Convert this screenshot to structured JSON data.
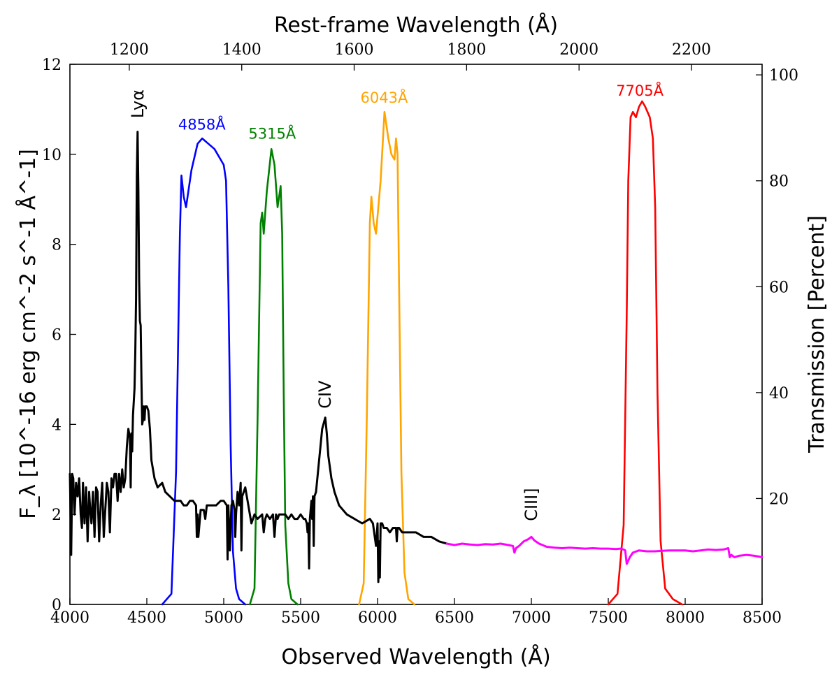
{
  "chart_data": {
    "type": "line",
    "xlabel": "Observed Wavelength (Å)",
    "ylabel": "F_λ [10^-16 erg cm^-2 s^-1 Å^-1]",
    "y2label": "Transmission [Percent]",
    "top_xlabel": "Rest-frame Wavelength (Å)",
    "xlim": [
      4000,
      8500
    ],
    "ylim": [
      0,
      12
    ],
    "y2lim": [
      0,
      102
    ],
    "x_ticks": [
      "4000",
      "4500",
      "5000",
      "5500",
      "6000",
      "6500",
      "7000",
      "7500",
      "8000",
      "8500"
    ],
    "y_ticks": [
      "0",
      "2",
      "4",
      "6",
      "8",
      "10",
      "12"
    ],
    "y2_ticks": [
      "20",
      "40",
      "60",
      "80",
      "100"
    ],
    "top_ticks": [
      "1200",
      "1400",
      "1600",
      "1800",
      "2000",
      "2200"
    ],
    "redshift": 2.655,
    "colors": {
      "spectrum": "#000000",
      "spectrum_ext": "#ff00ff",
      "f4858": "#0000ff",
      "f5315": "#008000",
      "f6043": "#ffa500",
      "f7705": "#ff0000"
    },
    "annotations": [
      {
        "text": "Lyα",
        "x": 4440,
        "y": 10.8
      },
      {
        "text": "CIV",
        "x": 5660,
        "y": 4.35
      },
      {
        "text": "CIII]",
        "x": 7000,
        "y": 1.85
      }
    ],
    "filters": [
      {
        "name": "f4858",
        "label": "4858Å",
        "label_x": 4858,
        "label_y": 10.55,
        "x": [
          4600,
          4660,
          4690,
          4715,
          4725,
          4740,
          4755,
          4790,
          4830,
          4860,
          4900,
          4940,
          4980,
          5000,
          5015,
          5030,
          5045,
          5060,
          5080,
          5100,
          5140
        ],
        "values": [
          0,
          2,
          25,
          70,
          81,
          77,
          75,
          82,
          87,
          88,
          87,
          86,
          84,
          83,
          80,
          60,
          30,
          10,
          3,
          1,
          0
        ]
      },
      {
        "name": "f5315",
        "label": "5315Å",
        "label_x": 5315,
        "label_y": 10.35,
        "x": [
          5170,
          5200,
          5220,
          5240,
          5250,
          5260,
          5280,
          5310,
          5330,
          5350,
          5370,
          5380,
          5390,
          5400,
          5420,
          5440,
          5480
        ],
        "values": [
          0,
          3,
          35,
          72,
          74,
          70,
          78,
          86,
          83,
          75,
          79,
          70,
          40,
          15,
          4,
          1,
          0
        ]
      },
      {
        "name": "f6043",
        "label": "6043Å",
        "label_x": 6043,
        "label_y": 11.15,
        "x": [
          5880,
          5910,
          5930,
          5950,
          5960,
          5975,
          5990,
          6020,
          6045,
          6070,
          6090,
          6110,
          6120,
          6130,
          6140,
          6155,
          6175,
          6200,
          6240
        ],
        "values": [
          0,
          4,
          35,
          72,
          77,
          72,
          70,
          80,
          93,
          88,
          85,
          84,
          88,
          85,
          60,
          25,
          6,
          1,
          0
        ]
      },
      {
        "name": "f7705",
        "label": "7705Å",
        "label_x": 7705,
        "label_y": 11.3,
        "x": [
          7500,
          7560,
          7600,
          7620,
          7630,
          7645,
          7660,
          7680,
          7700,
          7720,
          7740,
          7770,
          7790,
          7805,
          7820,
          7840,
          7870,
          7920,
          7980
        ],
        "values": [
          0,
          2,
          15,
          55,
          80,
          92,
          93,
          92,
          94,
          95,
          94,
          92,
          88,
          75,
          40,
          12,
          3,
          1,
          0
        ]
      }
    ],
    "series": [
      {
        "name": "spectrum",
        "color_key": "spectrum",
        "x": [
          4000,
          4008,
          4015,
          4022,
          4030,
          4040,
          4050,
          4060,
          4070,
          4078,
          4085,
          4095,
          4105,
          4115,
          4125,
          4132,
          4140,
          4150,
          4160,
          4170,
          4180,
          4190,
          4200,
          4210,
          4220,
          4230,
          4240,
          4250,
          4260,
          4270,
          4280,
          4290,
          4300,
          4310,
          4320,
          4330,
          4340,
          4350,
          4360,
          4370,
          4380,
          4390,
          4395,
          4400,
          4405,
          4410,
          4415,
          4420,
          4425,
          4430,
          4435,
          4440,
          4445,
          4450,
          4455,
          4460,
          4465,
          4470,
          4475,
          4480,
          4485,
          4490,
          4500,
          4510,
          4520,
          4530,
          4540,
          4550,
          4570,
          4600,
          4620,
          4650,
          4680,
          4720,
          4740,
          4760,
          4780,
          4800,
          4820,
          4825,
          4830,
          4835,
          4850,
          4870,
          4880,
          4890,
          4900,
          4920,
          4950,
          4980,
          5000,
          5020,
          5025,
          5030,
          5040,
          5050,
          5060,
          5070,
          5075,
          5080,
          5090,
          5100,
          5110,
          5115,
          5120,
          5130,
          5140,
          5150,
          5160,
          5170,
          5180,
          5200,
          5220,
          5250,
          5260,
          5270,
          5280,
          5300,
          5320,
          5330,
          5340,
          5350,
          5360,
          5380,
          5400,
          5420,
          5440,
          5460,
          5480,
          5500,
          5520,
          5530,
          5540,
          5545,
          5550,
          5555,
          5560,
          5570,
          5575,
          5580,
          5585,
          5590,
          5600,
          5620,
          5640,
          5660,
          5670,
          5680,
          5700,
          5720,
          5750,
          5800,
          5850,
          5900,
          5950,
          5970,
          5990,
          6000,
          6005,
          6010,
          6015,
          6020,
          6030,
          6040,
          6060,
          6080,
          6100,
          6120,
          6125,
          6130,
          6140,
          6160,
          6200,
          6250,
          6300,
          6350,
          6400,
          6450
        ],
        "values": [
          2.9,
          1.1,
          2.9,
          2.8,
          2.0,
          2.7,
          2.4,
          2.8,
          2.0,
          1.7,
          2.7,
          1.8,
          2.6,
          1.4,
          2.5,
          2.1,
          1.8,
          2.5,
          1.5,
          2.6,
          2.5,
          1.4,
          2.2,
          2.7,
          1.5,
          2.1,
          2.7,
          2.5,
          1.6,
          2.8,
          2.6,
          2.9,
          2.9,
          2.3,
          2.9,
          2.5,
          3.0,
          2.6,
          2.8,
          3.5,
          3.9,
          3.7,
          2.6,
          3.8,
          3.4,
          4.2,
          4.5,
          4.8,
          5.6,
          6.8,
          9.5,
          10.5,
          9.2,
          7.2,
          6.3,
          6.2,
          5.0,
          4.0,
          4.1,
          4.4,
          4.1,
          4.4,
          4.4,
          4.3,
          3.9,
          3.2,
          3.0,
          2.8,
          2.6,
          2.7,
          2.5,
          2.4,
          2.3,
          2.3,
          2.2,
          2.2,
          2.3,
          2.3,
          2.2,
          1.5,
          2.0,
          1.5,
          2.1,
          2.1,
          1.9,
          2.2,
          2.2,
          2.2,
          2.2,
          2.3,
          2.3,
          2.2,
          1.0,
          2.2,
          1.2,
          2.2,
          2.3,
          2.1,
          1.5,
          2.0,
          2.5,
          2.2,
          2.7,
          1.2,
          2.4,
          2.5,
          2.6,
          2.4,
          2.2,
          2.0,
          1.8,
          2.0,
          1.9,
          2.0,
          1.6,
          1.9,
          2.0,
          1.9,
          2.0,
          1.5,
          2.0,
          1.9,
          2.0,
          2.0,
          2.0,
          1.9,
          2.0,
          1.9,
          1.9,
          2.0,
          1.9,
          1.9,
          1.8,
          1.6,
          1.8,
          0.8,
          1.9,
          2.3,
          1.9,
          2.4,
          1.3,
          2.4,
          2.5,
          3.2,
          3.9,
          4.15,
          3.8,
          3.3,
          2.8,
          2.5,
          2.2,
          2.0,
          1.9,
          1.8,
          1.9,
          1.8,
          1.3,
          1.8,
          0.5,
          1.4,
          0.6,
          1.8,
          1.8,
          1.7,
          1.7,
          1.6,
          1.7,
          1.7,
          1.4,
          1.7,
          1.7,
          1.6,
          1.6,
          1.6,
          1.5,
          1.5,
          1.4,
          1.35
        ]
      },
      {
        "name": "spectrum_ext",
        "color_key": "spectrum_ext",
        "x": [
          6450,
          6500,
          6550,
          6600,
          6650,
          6700,
          6750,
          6800,
          6850,
          6880,
          6890,
          6900,
          6920,
          6950,
          6980,
          7000,
          7020,
          7050,
          7100,
          7150,
          7200,
          7250,
          7300,
          7350,
          7400,
          7450,
          7500,
          7550,
          7580,
          7600,
          7610,
          7620,
          7640,
          7660,
          7700,
          7750,
          7800,
          7850,
          7900,
          7950,
          8000,
          8050,
          8100,
          8150,
          8200,
          8250,
          8280,
          8290,
          8300,
          8320,
          8350,
          8400,
          8450,
          8500
        ],
        "values": [
          1.35,
          1.32,
          1.35,
          1.33,
          1.32,
          1.34,
          1.33,
          1.35,
          1.32,
          1.3,
          1.15,
          1.25,
          1.3,
          1.4,
          1.45,
          1.5,
          1.42,
          1.35,
          1.28,
          1.26,
          1.25,
          1.26,
          1.25,
          1.24,
          1.25,
          1.24,
          1.24,
          1.23,
          1.24,
          1.22,
          1.2,
          0.9,
          1.05,
          1.15,
          1.2,
          1.18,
          1.18,
          1.19,
          1.2,
          1.2,
          1.2,
          1.18,
          1.2,
          1.22,
          1.21,
          1.22,
          1.25,
          1.05,
          1.1,
          1.05,
          1.08,
          1.1,
          1.08,
          1.05
        ]
      }
    ]
  }
}
